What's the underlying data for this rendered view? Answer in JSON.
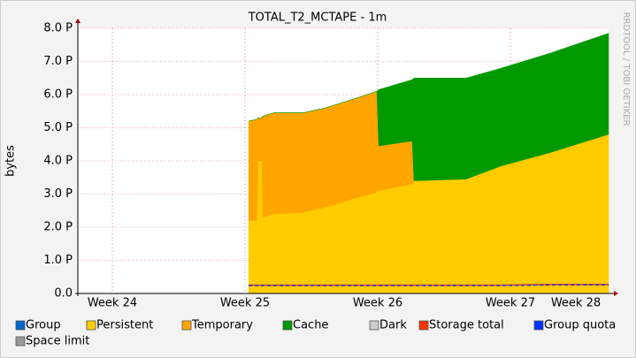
{
  "chart_data": {
    "type": "area",
    "title": "TOTAL_T2_MCTAPE - 1m",
    "ylabel": "bytes",
    "watermark": "RRDTOOL / TOBI OETIKER",
    "x": [
      25.027,
      25.087,
      25.1,
      25.127,
      25.133,
      25.22,
      25.44,
      25.607,
      25.807,
      25.993,
      26.007,
      26.26,
      26.273,
      26.667,
      26.933,
      27.3,
      27.74
    ],
    "xlim": [
      23.74,
      27.74
    ],
    "xticks": [
      {
        "value": 24,
        "label": "Week 24"
      },
      {
        "value": 25,
        "label": "Week 25"
      },
      {
        "value": 26,
        "label": "Week 26"
      },
      {
        "value": 27,
        "label": "Week 27"
      },
      {
        "value": 28,
        "label": "Week 28"
      }
    ],
    "ylim": [
      0,
      8
    ],
    "yticks": [
      {
        "value": 0,
        "label": "0.0"
      },
      {
        "value": 1,
        "label": "1.0 P"
      },
      {
        "value": 2,
        "label": "2.0 P"
      },
      {
        "value": 3,
        "label": "3.0 P"
      },
      {
        "value": 4,
        "label": "4.0 P"
      },
      {
        "value": 5,
        "label": "5.0 P"
      },
      {
        "value": 6,
        "label": "6.0 P"
      },
      {
        "value": 7,
        "label": "7.0 P"
      },
      {
        "value": 8,
        "label": "8.0 P"
      }
    ],
    "grid": true,
    "series": [
      {
        "name": "Group",
        "color": "#0066cc",
        "kind": "area",
        "values": [
          null,
          null,
          null,
          null,
          null,
          null,
          null,
          null,
          null,
          null,
          null,
          null,
          null,
          null,
          null,
          null,
          null
        ]
      },
      {
        "name": "Persistent",
        "color": "#ffcc00",
        "kind": "area",
        "values": [
          2.2,
          2.2,
          4.0,
          4.0,
          2.3,
          2.4,
          2.45,
          2.6,
          2.85,
          3.05,
          3.1,
          3.3,
          3.4,
          3.45,
          3.85,
          4.25,
          4.8
        ]
      },
      {
        "name": "Temporary",
        "color": "#ffa500",
        "kind": "area",
        "values": [
          3.0,
          3.05,
          1.3,
          1.3,
          3.05,
          3.05,
          3.0,
          3.0,
          3.0,
          3.05,
          1.35,
          1.3,
          0,
          0,
          0,
          0,
          0
        ]
      },
      {
        "name": "Cache",
        "color": "#009900",
        "kind": "area",
        "values": [
          0,
          0,
          0,
          0,
          0,
          0,
          0,
          0,
          0,
          0,
          1.7,
          1.85,
          3.1,
          3.05,
          2.95,
          3.0,
          3.05
        ]
      },
      {
        "name": "Dark",
        "color": "#cccccc",
        "kind": "area",
        "values": [
          null,
          null,
          null,
          null,
          null,
          null,
          null,
          null,
          null,
          null,
          null,
          null,
          null,
          null,
          null,
          null,
          null
        ]
      },
      {
        "name": "Storage total",
        "color": "#ff3300",
        "kind": "line",
        "values": [
          0.25,
          0.25,
          0.25,
          0.25,
          0.25,
          0.25,
          0.25,
          0.25,
          0.25,
          0.25,
          0.25,
          0.25,
          0.25,
          0.25,
          0.25,
          0.27,
          0.27
        ]
      },
      {
        "name": "Group quota",
        "color": "#0033ff",
        "kind": "line",
        "values": [
          0.24,
          0.24,
          0.24,
          0.24,
          0.24,
          0.24,
          0.24,
          0.24,
          0.24,
          0.24,
          0.24,
          0.24,
          0.24,
          0.24,
          0.24,
          0.26,
          0.26
        ]
      },
      {
        "name": "Space limit",
        "color": "#999999",
        "kind": "line",
        "values": [
          null,
          null,
          null,
          null,
          null,
          null,
          null,
          null,
          null,
          null,
          null,
          null,
          null,
          null,
          null,
          null,
          null
        ]
      }
    ]
  }
}
